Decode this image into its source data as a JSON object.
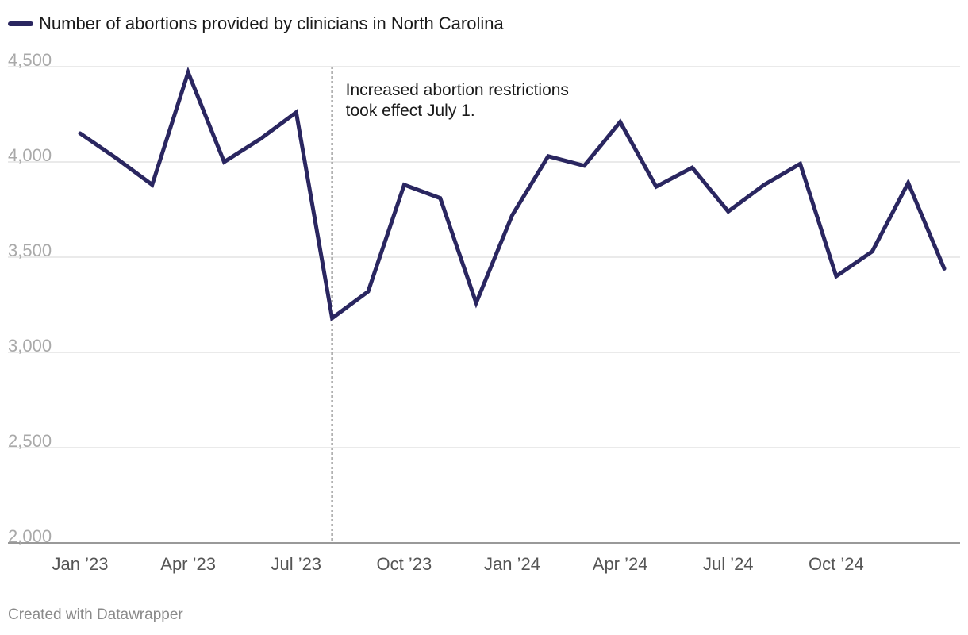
{
  "chart_data": {
    "type": "line",
    "title": "",
    "legend_position": "top-left",
    "series": [
      {
        "name": "Number of abortions provided by clinicians in North Carolina",
        "color": "#2a2660",
        "values": [
          4150,
          4020,
          3880,
          4470,
          4000,
          4120,
          4260,
          3180,
          3320,
          3880,
          3810,
          3260,
          3720,
          4030,
          3980,
          4210,
          3870,
          3970,
          3740,
          3880,
          3990,
          3400,
          3530,
          3890,
          3440
        ]
      }
    ],
    "x": [
      "Jan 2023",
      "Feb 2023",
      "Mar 2023",
      "Apr 2023",
      "May 2023",
      "Jun 2023",
      "Jul 2023",
      "Aug 2023",
      "Sep 2023",
      "Oct 2023",
      "Nov 2023",
      "Dec 2023",
      "Jan 2024",
      "Feb 2024",
      "Mar 2024",
      "Apr 2024",
      "May 2024",
      "Jun 2024",
      "Jul 2024",
      "Aug 2024",
      "Sep 2024",
      "Oct 2024",
      "Nov 2024",
      "Dec 2024",
      "Jan 2025"
    ],
    "x_tick_labels": [
      "Jan ’23",
      "Apr ’23",
      "Jul ’23",
      "Oct ’23",
      "Jan ’24",
      "Apr ’24",
      "Jul ’24",
      "Oct ’24"
    ],
    "x_tick_index": [
      0,
      3,
      6,
      9,
      12,
      15,
      18,
      21
    ],
    "y_ticks": [
      2000,
      2500,
      3000,
      3500,
      4000,
      4500
    ],
    "y_tick_labels": [
      "2,000",
      "2,500",
      "3,000",
      "3,500",
      "4,000",
      "4,500"
    ],
    "ylim": [
      2000,
      4500
    ],
    "grid": true,
    "annotation": {
      "x_index": 7,
      "line1": "Increased abortion restrictions",
      "line2": "took effect July 1."
    },
    "colors": {
      "line": "#2a2660",
      "grid": "#e3e3e3",
      "tick": "#a9a9a9",
      "annotation_line": "#a6a6a6",
      "text": "#1a1a1a"
    }
  },
  "footer": {
    "credit": "Created with Datawrapper"
  }
}
